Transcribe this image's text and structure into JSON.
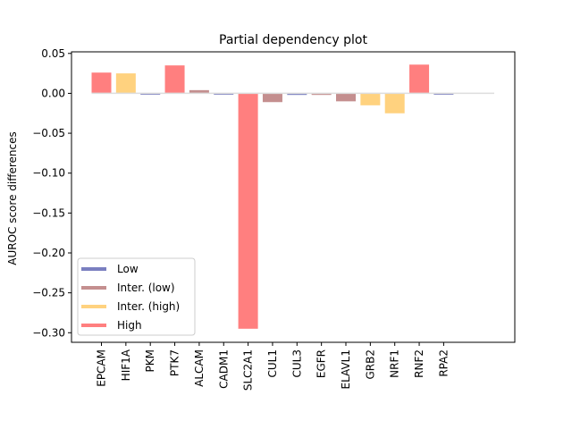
{
  "chart_data": {
    "type": "bar",
    "title": "Partial dependency plot",
    "xlabel": "",
    "ylabel": "AUROC score differences",
    "categories": [
      "EPCAM",
      "HIF1A",
      "PKM",
      "PTK7",
      "ALCAM",
      "CADM1",
      "SLC2A1",
      "CUL1",
      "CUL3",
      "EGFR",
      "ELAVL1",
      "GRB2",
      "NRF1",
      "RNF2",
      "RPA2"
    ],
    "values": [
      0.026,
      0.025,
      -0.001,
      0.035,
      0.004,
      0.0,
      -0.295,
      -0.011,
      -0.002,
      -0.002,
      -0.01,
      -0.015,
      -0.025,
      0.036,
      0.0
    ],
    "levels": [
      "High",
      "Inter. (high)",
      "Low",
      "High",
      "Inter. (low)",
      "Low",
      "High",
      "Inter. (low)",
      "Low",
      "Inter. (low)",
      "Inter. (low)",
      "Inter. (high)",
      "Inter. (high)",
      "High",
      "Low"
    ],
    "ylim": [
      -0.312,
      0.052
    ],
    "yticks": [
      "0.05",
      "0.00",
      "−0.05",
      "−0.10",
      "−0.15",
      "−0.20",
      "−0.25",
      "−0.30"
    ],
    "ytick_values": [
      0.05,
      0.0,
      -0.05,
      -0.1,
      -0.15,
      -0.2,
      -0.25,
      -0.3
    ],
    "grid": false,
    "legend": {
      "placement": "lower-left",
      "entries": [
        {
          "label": "Low",
          "color": "#7a7fc0"
        },
        {
          "label": "Inter. (low)",
          "color": "#c48f8f"
        },
        {
          "label": "Inter. (high)",
          "color": "#ffd27f"
        },
        {
          "label": "High",
          "color": "#ff7f7f"
        }
      ]
    },
    "colors": {
      "Low": "#7a7fc0",
      "Inter. (low)": "#c48f8f",
      "Inter. (high)": "#ffd27f",
      "High": "#ff7f7f"
    }
  }
}
